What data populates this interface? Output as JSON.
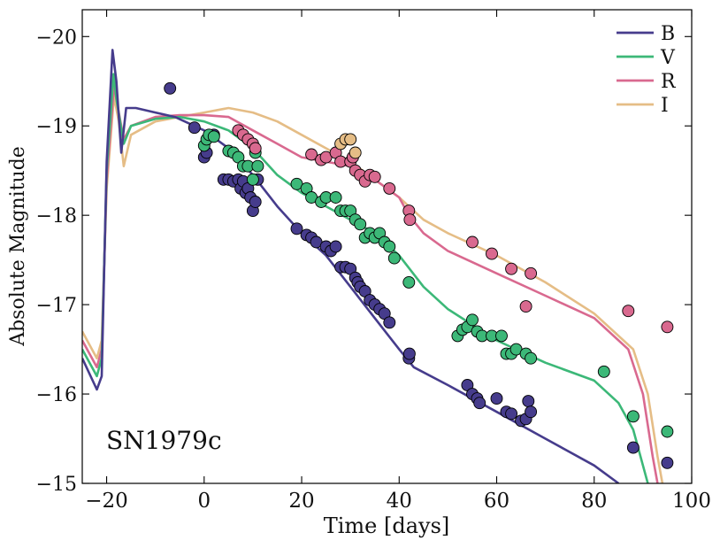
{
  "chart_data": {
    "type": "line",
    "title": "",
    "annotation": "SN1979c",
    "xlabel": "Time [days]",
    "ylabel": "Absolute Magnitude",
    "xlim": [
      -25,
      100
    ],
    "ylim": [
      -15.0,
      -20.3
    ],
    "y_inverted": true,
    "x_ticks": [
      -20,
      0,
      20,
      40,
      60,
      80,
      100
    ],
    "x_tick_labels": [
      "−20",
      "0",
      "20",
      "40",
      "60",
      "80",
      "100"
    ],
    "y_ticks": [
      -20,
      -19,
      -18,
      -17,
      -16,
      -15
    ],
    "y_tick_labels": [
      "−20",
      "−19",
      "−18",
      "−17",
      "−16",
      "−15"
    ],
    "legend_position": "top-right",
    "grid": false,
    "series": [
      {
        "name": "B",
        "color": "#463c8c",
        "model": [
          [
            -25,
            -16.4
          ],
          [
            -22,
            -16.05
          ],
          [
            -21,
            -16.2
          ],
          [
            -20,
            -18.6
          ],
          [
            -18.8,
            -19.85
          ],
          [
            -18,
            -19.5
          ],
          [
            -17,
            -18.7
          ],
          [
            -16,
            -19.2
          ],
          [
            -14,
            -19.2
          ],
          [
            -10,
            -19.15
          ],
          [
            -6,
            -19.1
          ],
          [
            0,
            -18.95
          ],
          [
            5,
            -18.75
          ],
          [
            10,
            -18.45
          ],
          [
            15,
            -18.1
          ],
          [
            20,
            -17.8
          ],
          [
            25,
            -17.55
          ],
          [
            30,
            -17.2
          ],
          [
            35,
            -16.85
          ],
          [
            40,
            -16.5
          ],
          [
            43,
            -16.3
          ],
          [
            50,
            -16.1
          ],
          [
            60,
            -15.8
          ],
          [
            70,
            -15.5
          ],
          [
            80,
            -15.2
          ],
          [
            85,
            -15.0
          ]
        ],
        "observed": [
          [
            -7,
            -19.42
          ],
          [
            -2,
            -18.98
          ],
          [
            0,
            -18.65
          ],
          [
            0.5,
            -18.7
          ],
          [
            2,
            -18.9
          ],
          [
            4,
            -18.4
          ],
          [
            5,
            -18.4
          ],
          [
            6,
            -18.38
          ],
          [
            7,
            -18.4
          ],
          [
            7.5,
            -18.3
          ],
          [
            8,
            -18.38
          ],
          [
            8.5,
            -18.25
          ],
          [
            9,
            -18.3
          ],
          [
            9.5,
            -18.2
          ],
          [
            10,
            -18.05
          ],
          [
            10.5,
            -18.15
          ],
          [
            11,
            -18.4
          ],
          [
            19,
            -17.85
          ],
          [
            21,
            -17.78
          ],
          [
            22,
            -17.75
          ],
          [
            23,
            -17.7
          ],
          [
            25,
            -17.65
          ],
          [
            26,
            -17.6
          ],
          [
            27,
            -17.65
          ],
          [
            28,
            -17.42
          ],
          [
            29,
            -17.42
          ],
          [
            30,
            -17.4
          ],
          [
            31,
            -17.3
          ],
          [
            31.5,
            -17.25
          ],
          [
            32,
            -17.2
          ],
          [
            33,
            -17.15
          ],
          [
            34,
            -17.05
          ],
          [
            35,
            -17.0
          ],
          [
            36,
            -16.95
          ],
          [
            37,
            -16.9
          ],
          [
            38,
            -16.8
          ],
          [
            42,
            -16.4
          ],
          [
            42.1,
            -16.45
          ],
          [
            54,
            -16.1
          ],
          [
            55,
            -16.0
          ],
          [
            56,
            -15.95
          ],
          [
            56.5,
            -15.9
          ],
          [
            60,
            -15.95
          ],
          [
            62,
            -15.8
          ],
          [
            63,
            -15.78
          ],
          [
            65,
            -15.7
          ],
          [
            66,
            -15.72
          ],
          [
            66.5,
            -15.92
          ],
          [
            67,
            -15.8
          ],
          [
            88,
            -15.4
          ],
          [
            95,
            -15.23
          ]
        ]
      },
      {
        "name": "V",
        "color": "#3cb878",
        "model": [
          [
            -25,
            -16.5
          ],
          [
            -22,
            -16.2
          ],
          [
            -21,
            -16.4
          ],
          [
            -20,
            -18.5
          ],
          [
            -18.6,
            -19.58
          ],
          [
            -18,
            -19.3
          ],
          [
            -16.5,
            -18.8
          ],
          [
            -15,
            -19.0
          ],
          [
            -10,
            -19.08
          ],
          [
            -5,
            -19.1
          ],
          [
            0,
            -19.05
          ],
          [
            5,
            -18.95
          ],
          [
            10,
            -18.75
          ],
          [
            15,
            -18.45
          ],
          [
            20,
            -18.25
          ],
          [
            25,
            -18.1
          ],
          [
            30,
            -17.95
          ],
          [
            35,
            -17.8
          ],
          [
            40,
            -17.55
          ],
          [
            45,
            -17.2
          ],
          [
            50,
            -16.95
          ],
          [
            60,
            -16.6
          ],
          [
            70,
            -16.35
          ],
          [
            80,
            -16.15
          ],
          [
            85,
            -15.9
          ],
          [
            88,
            -15.6
          ],
          [
            90,
            -15.2
          ],
          [
            91,
            -15.0
          ]
        ],
        "observed": [
          [
            0,
            -18.78
          ],
          [
            0.5,
            -18.85
          ],
          [
            1,
            -18.9
          ],
          [
            2,
            -18.88
          ],
          [
            5,
            -18.72
          ],
          [
            6,
            -18.7
          ],
          [
            7,
            -18.65
          ],
          [
            8,
            -18.55
          ],
          [
            9,
            -18.55
          ],
          [
            10,
            -18.4
          ],
          [
            10.5,
            -18.7
          ],
          [
            11,
            -18.55
          ],
          [
            19,
            -18.35
          ],
          [
            21,
            -18.3
          ],
          [
            22,
            -18.2
          ],
          [
            24,
            -18.15
          ],
          [
            25,
            -18.2
          ],
          [
            27,
            -18.2
          ],
          [
            28,
            -18.05
          ],
          [
            29,
            -18.05
          ],
          [
            30,
            -18.05
          ],
          [
            31,
            -17.95
          ],
          [
            32,
            -17.9
          ],
          [
            33,
            -17.75
          ],
          [
            34,
            -17.8
          ],
          [
            35,
            -17.75
          ],
          [
            36,
            -17.8
          ],
          [
            37,
            -17.7
          ],
          [
            38,
            -17.65
          ],
          [
            39,
            -17.52
          ],
          [
            42,
            -17.25
          ],
          [
            52,
            -16.65
          ],
          [
            53,
            -16.72
          ],
          [
            54,
            -16.75
          ],
          [
            55,
            -16.83
          ],
          [
            56,
            -16.7
          ],
          [
            57,
            -16.65
          ],
          [
            59,
            -16.65
          ],
          [
            61,
            -16.65
          ],
          [
            62,
            -16.45
          ],
          [
            63,
            -16.45
          ],
          [
            64,
            -16.5
          ],
          [
            66,
            -16.45
          ],
          [
            67,
            -16.4
          ],
          [
            82,
            -16.25
          ],
          [
            88,
            -15.75
          ],
          [
            95,
            -15.58
          ]
        ]
      },
      {
        "name": "R",
        "color": "#d9698f",
        "model": [
          [
            -25,
            -16.6
          ],
          [
            -22,
            -16.3
          ],
          [
            -21,
            -16.5
          ],
          [
            -20,
            -18.4
          ],
          [
            -18.5,
            -19.45
          ],
          [
            -17.5,
            -19.15
          ],
          [
            -16.5,
            -18.85
          ],
          [
            -15,
            -19.0
          ],
          [
            -10,
            -19.1
          ],
          [
            -5,
            -19.12
          ],
          [
            0,
            -19.12
          ],
          [
            5,
            -19.1
          ],
          [
            10,
            -18.95
          ],
          [
            15,
            -18.8
          ],
          [
            20,
            -18.65
          ],
          [
            25,
            -18.6
          ],
          [
            30,
            -18.55
          ],
          [
            35,
            -18.4
          ],
          [
            40,
            -18.2
          ],
          [
            42,
            -18.0
          ],
          [
            45,
            -17.8
          ],
          [
            50,
            -17.6
          ],
          [
            60,
            -17.35
          ],
          [
            70,
            -17.1
          ],
          [
            80,
            -16.85
          ],
          [
            87,
            -16.5
          ],
          [
            90,
            -16.0
          ],
          [
            92,
            -15.3
          ],
          [
            93,
            -15.0
          ]
        ],
        "observed": [
          [
            7,
            -18.95
          ],
          [
            8,
            -18.9
          ],
          [
            9,
            -18.85
          ],
          [
            10,
            -18.8
          ],
          [
            10.5,
            -18.75
          ],
          [
            22,
            -18.68
          ],
          [
            24,
            -18.62
          ],
          [
            25,
            -18.65
          ],
          [
            27,
            -18.7
          ],
          [
            28,
            -18.6
          ],
          [
            30,
            -18.6
          ],
          [
            30.5,
            -18.65
          ],
          [
            31,
            -18.5
          ],
          [
            32,
            -18.45
          ],
          [
            33,
            -18.38
          ],
          [
            34,
            -18.45
          ],
          [
            35,
            -18.43
          ],
          [
            38,
            -18.3
          ],
          [
            42,
            -18.05
          ],
          [
            42.2,
            -17.95
          ],
          [
            55,
            -17.7
          ],
          [
            59,
            -17.57
          ],
          [
            63,
            -17.4
          ],
          [
            66,
            -16.98
          ],
          [
            67,
            -17.35
          ],
          [
            87,
            -16.93
          ],
          [
            95,
            -16.75
          ]
        ]
      },
      {
        "name": "I",
        "color": "#e5bd86",
        "model": [
          [
            -25,
            -16.7
          ],
          [
            -22,
            -16.4
          ],
          [
            -21,
            -16.6
          ],
          [
            -20,
            -18.3
          ],
          [
            -18.5,
            -19.33
          ],
          [
            -17.5,
            -19.05
          ],
          [
            -16.5,
            -18.55
          ],
          [
            -15,
            -18.9
          ],
          [
            -10,
            -19.05
          ],
          [
            -5,
            -19.1
          ],
          [
            0,
            -19.15
          ],
          [
            5,
            -19.2
          ],
          [
            10,
            -19.15
          ],
          [
            15,
            -19.05
          ],
          [
            20,
            -18.9
          ],
          [
            25,
            -18.75
          ],
          [
            30,
            -18.6
          ],
          [
            35,
            -18.4
          ],
          [
            40,
            -18.2
          ],
          [
            45,
            -17.95
          ],
          [
            50,
            -17.8
          ],
          [
            60,
            -17.55
          ],
          [
            70,
            -17.25
          ],
          [
            80,
            -16.9
          ],
          [
            88,
            -16.5
          ],
          [
            91,
            -16.0
          ],
          [
            93,
            -15.3
          ],
          [
            94,
            -15.0
          ]
        ],
        "observed": [
          [
            28,
            -18.8
          ],
          [
            29,
            -18.85
          ],
          [
            30,
            -18.85
          ],
          [
            31,
            -18.7
          ]
        ]
      }
    ]
  }
}
